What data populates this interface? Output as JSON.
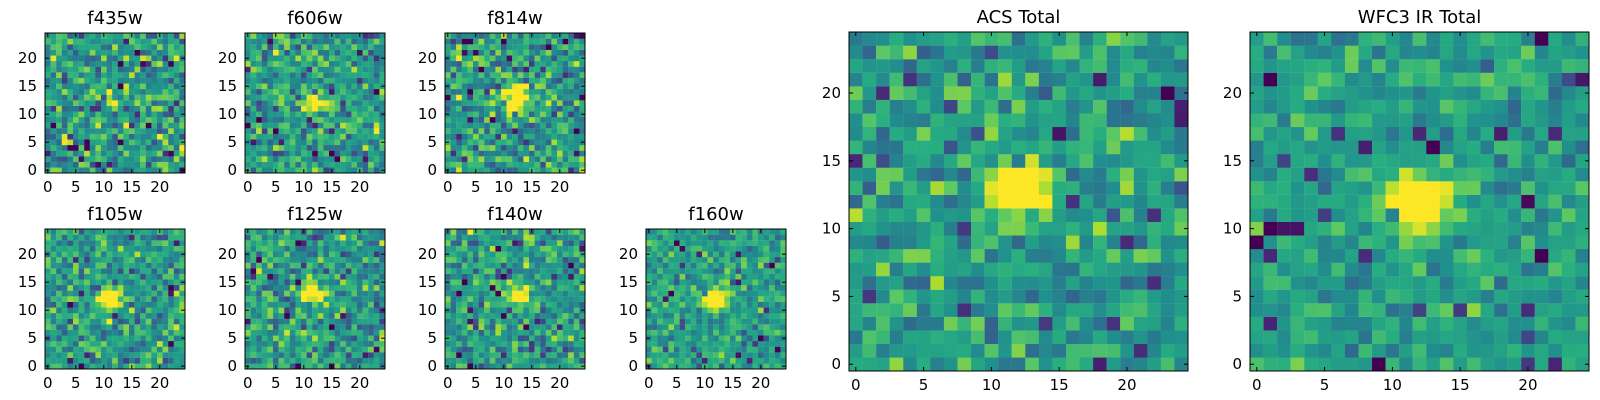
{
  "chart_data": [
    {
      "type": "heatmap",
      "title": "f435w",
      "xlim": [
        0,
        25
      ],
      "ylim": [
        0,
        25
      ],
      "x_ticks": [
        0,
        5,
        10,
        15,
        20
      ],
      "y_ticks": [
        0,
        5,
        10,
        15,
        20
      ],
      "grid_size": [
        25,
        25
      ],
      "source_center": [
        12,
        13
      ],
      "source_peak": 0.15,
      "noise_level": 0.9,
      "colormap": "viridis"
    },
    {
      "type": "heatmap",
      "title": "f606w",
      "xlim": [
        0,
        25
      ],
      "ylim": [
        0,
        25
      ],
      "x_ticks": [
        0,
        5,
        10,
        15,
        20
      ],
      "y_ticks": [
        0,
        5,
        10,
        15,
        20
      ],
      "grid_size": [
        25,
        25
      ],
      "source_center": [
        12,
        12
      ],
      "source_peak": 0.8,
      "noise_level": 0.85,
      "colormap": "viridis"
    },
    {
      "type": "heatmap",
      "title": "f814w",
      "xlim": [
        0,
        25
      ],
      "ylim": [
        0,
        25
      ],
      "x_ticks": [
        0,
        5,
        10,
        15,
        20
      ],
      "y_ticks": [
        0,
        5,
        10,
        15,
        20
      ],
      "grid_size": [
        25,
        25
      ],
      "source_center": [
        12,
        13
      ],
      "source_peak": 1.1,
      "noise_level": 0.85,
      "colormap": "viridis"
    },
    {
      "type": "heatmap",
      "title": "f105w",
      "xlim": [
        0,
        25
      ],
      "ylim": [
        0,
        25
      ],
      "x_ticks": [
        0,
        5,
        10,
        15,
        20
      ],
      "y_ticks": [
        0,
        5,
        10,
        15,
        20
      ],
      "grid_size": [
        25,
        25
      ],
      "source_center": [
        11,
        12
      ],
      "source_peak": 0.85,
      "noise_level": 0.75,
      "colormap": "viridis"
    },
    {
      "type": "heatmap",
      "title": "f125w",
      "xlim": [
        0,
        25
      ],
      "ylim": [
        0,
        25
      ],
      "x_ticks": [
        0,
        5,
        10,
        15,
        20
      ],
      "y_ticks": [
        0,
        5,
        10,
        15,
        20
      ],
      "grid_size": [
        25,
        25
      ],
      "source_center": [
        12,
        13
      ],
      "source_peak": 0.75,
      "noise_level": 0.8,
      "colormap": "viridis"
    },
    {
      "type": "heatmap",
      "title": "f140w",
      "xlim": [
        0,
        25
      ],
      "ylim": [
        0,
        25
      ],
      "x_ticks": [
        0,
        5,
        10,
        15,
        20
      ],
      "y_ticks": [
        0,
        5,
        10,
        15,
        20
      ],
      "grid_size": [
        25,
        25
      ],
      "source_center": [
        13,
        13
      ],
      "source_peak": 0.7,
      "noise_level": 0.85,
      "colormap": "viridis"
    },
    {
      "type": "heatmap",
      "title": "f160w",
      "xlim": [
        0,
        25
      ],
      "ylim": [
        0,
        25
      ],
      "x_ticks": [
        0,
        5,
        10,
        15,
        20
      ],
      "y_ticks": [
        0,
        5,
        10,
        15,
        20
      ],
      "grid_size": [
        25,
        25
      ],
      "source_center": [
        12,
        12
      ],
      "source_peak": 1.0,
      "noise_level": 0.65,
      "colormap": "viridis"
    },
    {
      "type": "heatmap",
      "title": "ACS Total",
      "xlim": [
        0,
        25
      ],
      "ylim": [
        0,
        25
      ],
      "x_ticks": [
        0,
        5,
        10,
        15,
        20
      ],
      "y_ticks": [
        0,
        5,
        10,
        15,
        20
      ],
      "grid_size": [
        25,
        25
      ],
      "source_center": [
        12,
        13
      ],
      "source_peak": 1.2,
      "noise_level": 0.7,
      "colormap": "viridis"
    },
    {
      "type": "heatmap",
      "title": "WFC3 IR Total",
      "xlim": [
        0,
        25
      ],
      "ylim": [
        0,
        25
      ],
      "x_ticks": [
        0,
        5,
        10,
        15,
        20
      ],
      "y_ticks": [
        0,
        5,
        10,
        15,
        20
      ],
      "grid_size": [
        25,
        25
      ],
      "source_center": [
        12,
        12
      ],
      "source_peak": 1.3,
      "noise_level": 0.5,
      "colormap": "viridis"
    }
  ]
}
